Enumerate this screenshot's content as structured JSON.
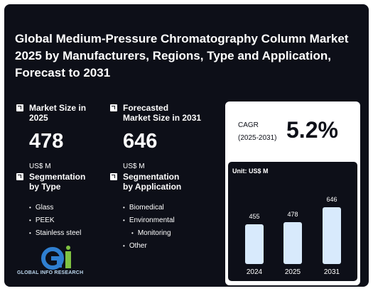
{
  "title": "Global Medium-Pressure Chromatography Column Market 2025 by Manufacturers, Regions, Type and Application, Forecast to 2031",
  "market_size": {
    "label": "Market Size in\n2025",
    "value": "478",
    "unit": "US$ M"
  },
  "forecast_size": {
    "label": "Forecasted\nMarket Size in 2031",
    "value": "646",
    "unit": "US$ M"
  },
  "seg_type": {
    "label": "Segmentation\nby Type",
    "items": [
      "Glass",
      "PEEK",
      "Stainless steel"
    ]
  },
  "seg_app": {
    "label": "Segmentation\nby Application",
    "items": [
      "Biomedical",
      "Environmental",
      "Monitoring",
      "Other"
    ]
  },
  "cagr": {
    "label_line1": "CAGR",
    "label_line2": "(2025-2031)",
    "value": "5.2%"
  },
  "logo_text": "GLOBAL INFO RESEARCH",
  "chart_data": {
    "type": "bar",
    "unit_label": "Unit: US$ M",
    "categories": [
      "2024",
      "2025",
      "2031"
    ],
    "values": [
      455,
      478,
      646
    ],
    "ylim": [
      0,
      700
    ]
  },
  "colors": {
    "background": "#0d0f18",
    "bar": "#d8eafc",
    "accent_blue": "#2f7fd0",
    "accent_green": "#7fc241"
  }
}
